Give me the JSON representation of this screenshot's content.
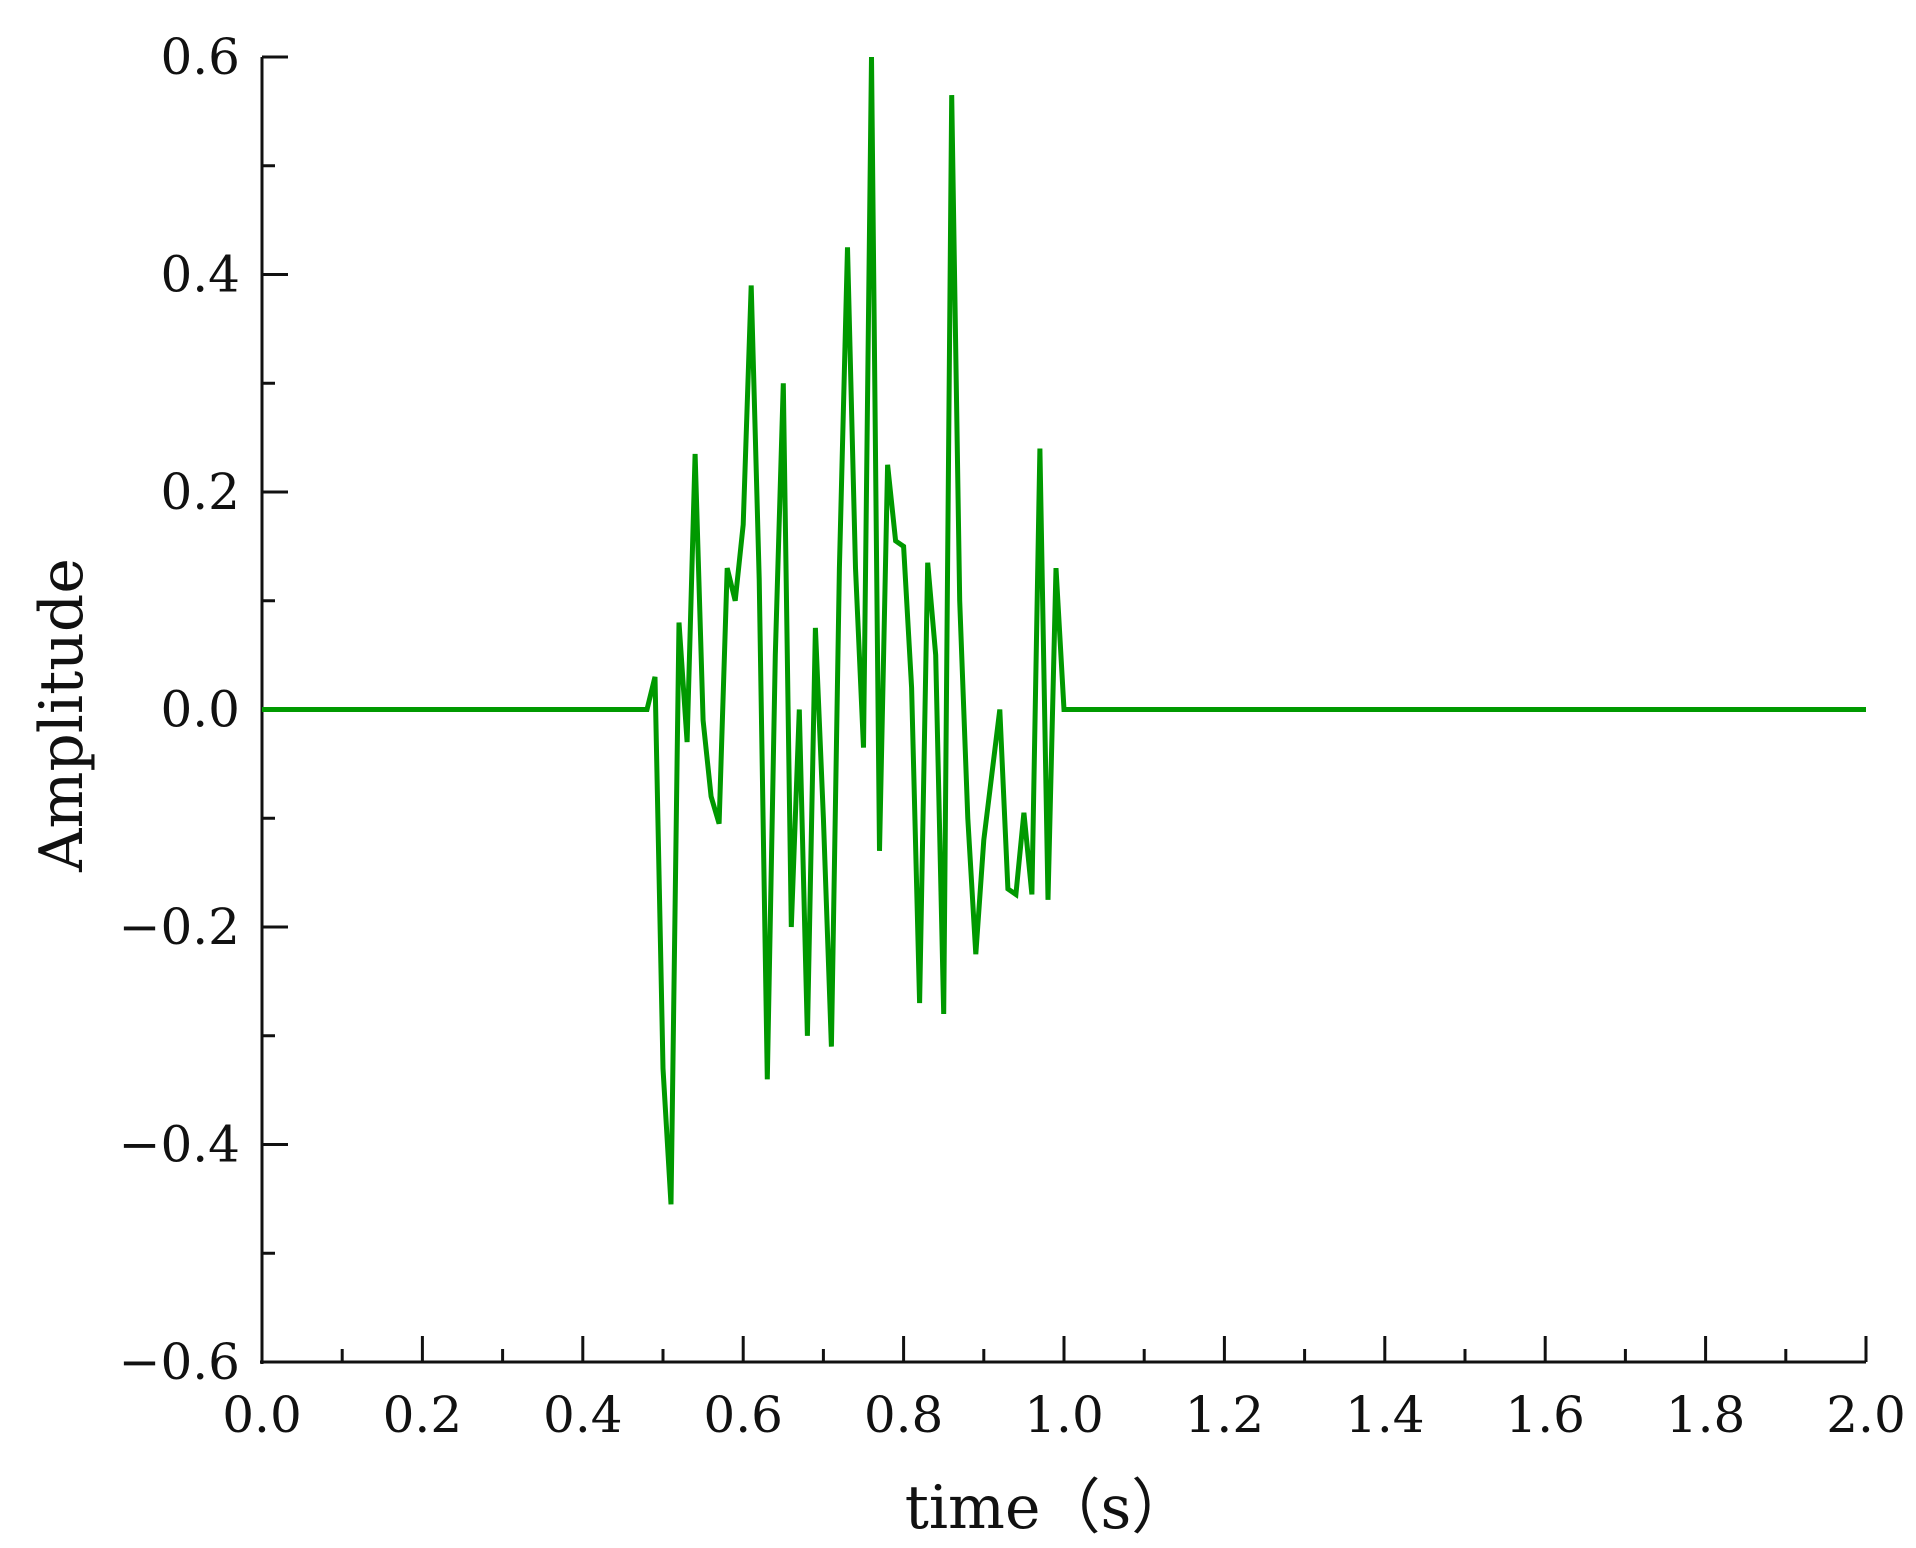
{
  "chart_data": {
    "type": "line",
    "title": "",
    "xlabel": "time（s）",
    "ylabel": "Amplitude",
    "xlim": [
      0.0,
      2.0
    ],
    "ylim": [
      -0.6,
      0.6
    ],
    "x_ticks": [
      "0.0",
      "0.2",
      "0.4",
      "0.6",
      "0.8",
      "1.0",
      "1.2",
      "1.4",
      "1.6",
      "1.8",
      "2.0"
    ],
    "y_ticks": [
      "-0.6",
      "-0.4",
      "-0.2",
      "0.0",
      "0.2",
      "0.4",
      "0.6"
    ],
    "grid": false,
    "line_color": "#009900",
    "series": [
      {
        "x": [
          0.0,
          0.48,
          0.49,
          0.5,
          0.51,
          0.52,
          0.53,
          0.54,
          0.55,
          0.56,
          0.57,
          0.58,
          0.59,
          0.6,
          0.61,
          0.62,
          0.63,
          0.64,
          0.65,
          0.66,
          0.67,
          0.68,
          0.69,
          0.7,
          0.71,
          0.72,
          0.73,
          0.74,
          0.75,
          0.76,
          0.77,
          0.78,
          0.79,
          0.8,
          0.81,
          0.82,
          0.83,
          0.84,
          0.85,
          0.86,
          0.87,
          0.88,
          0.89,
          0.9,
          0.91,
          0.92,
          0.93,
          0.94,
          0.95,
          0.96,
          0.97,
          0.98,
          0.99,
          1.0,
          2.0
        ],
        "y": [
          0.0,
          0.0,
          0.03,
          -0.33,
          -0.455,
          0.08,
          -0.03,
          0.235,
          -0.01,
          -0.08,
          -0.105,
          0.13,
          0.1,
          0.17,
          0.39,
          0.12,
          -0.34,
          0.05,
          0.3,
          -0.2,
          0.0,
          -0.3,
          0.075,
          -0.1,
          -0.31,
          0.13,
          0.425,
          0.13,
          -0.035,
          0.6,
          -0.13,
          0.225,
          0.155,
          0.15,
          0.02,
          -0.27,
          0.135,
          0.05,
          -0.28,
          0.565,
          0.1,
          -0.1,
          -0.225,
          -0.12,
          -0.06,
          0.0,
          -0.165,
          -0.17,
          -0.095,
          -0.17,
          0.24,
          -0.175,
          0.13,
          0.0,
          0.0
        ]
      }
    ]
  }
}
